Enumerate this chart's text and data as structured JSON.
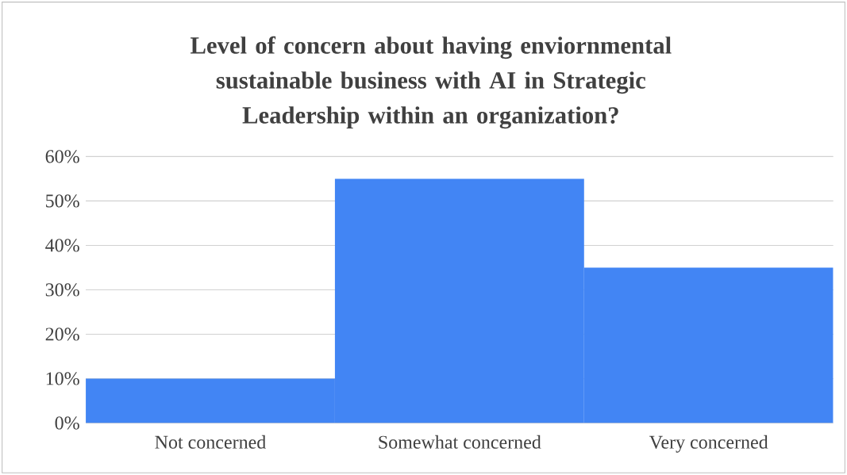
{
  "chart_data": {
    "type": "bar",
    "title": "Level of concern about having enviornmental sustainable business with AI in Strategic Leadership within an organization?",
    "categories": [
      "Not concerned",
      "Somewhat concerned",
      "Very concerned"
    ],
    "values": [
      10,
      55,
      35
    ],
    "color": "#4285f4",
    "ylim": [
      0,
      60
    ],
    "yticks": [
      {
        "value": 0,
        "label": "0%"
      },
      {
        "value": 10,
        "label": "10%"
      },
      {
        "value": 20,
        "label": "20%"
      },
      {
        "value": 30,
        "label": "30%"
      },
      {
        "value": 40,
        "label": "40%"
      },
      {
        "value": 50,
        "label": "50%"
      },
      {
        "value": 60,
        "label": "60%"
      }
    ],
    "grid": "y"
  }
}
